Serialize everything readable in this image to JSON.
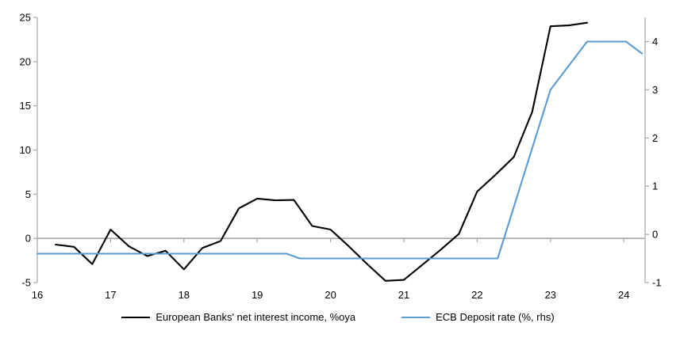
{
  "chart_data": {
    "type": "line",
    "title": "",
    "grid": false,
    "legend_position": "bottom",
    "x_axis": {
      "min": 16,
      "max": 24.29,
      "ticks": [
        16,
        17,
        18,
        19,
        20,
        21,
        22,
        23,
        24
      ]
    },
    "left_axis": {
      "min": -5,
      "max": 25,
      "ticks": [
        -5,
        0,
        5,
        10,
        15,
        20,
        25
      ]
    },
    "right_axis": {
      "min": -1,
      "max": 4.5,
      "ticks": [
        -1,
        0,
        1,
        2,
        3,
        4
      ]
    },
    "zero_line": true,
    "colors": {
      "axis": "#a6a6a6",
      "zero_line": "#a6a6a6",
      "text": "#000000",
      "series_black": "#000000",
      "series_blue": "#5b9bd5"
    },
    "series": [
      {
        "name": "European Banks' net interest income, %oya",
        "axis": "left",
        "color": "#000000",
        "points": [
          [
            16.25,
            -0.7
          ],
          [
            16.5,
            -0.95
          ],
          [
            16.75,
            -2.9
          ],
          [
            17.0,
            1.0
          ],
          [
            17.25,
            -0.9
          ],
          [
            17.5,
            -2.0
          ],
          [
            17.75,
            -1.4
          ],
          [
            18.0,
            -3.5
          ],
          [
            18.25,
            -1.1
          ],
          [
            18.5,
            -0.3
          ],
          [
            18.75,
            3.4
          ],
          [
            19.0,
            4.5
          ],
          [
            19.25,
            4.3
          ],
          [
            19.5,
            4.35
          ],
          [
            19.75,
            1.4
          ],
          [
            20.0,
            1.0
          ],
          [
            20.25,
            -0.9
          ],
          [
            20.5,
            -2.9
          ],
          [
            20.75,
            -4.8
          ],
          [
            21.0,
            -4.7
          ],
          [
            21.25,
            -3.0
          ],
          [
            21.5,
            -1.3
          ],
          [
            21.75,
            0.5
          ],
          [
            22.0,
            5.3
          ],
          [
            22.25,
            7.2
          ],
          [
            22.5,
            9.2
          ],
          [
            22.75,
            14.3
          ],
          [
            23.0,
            24.0
          ],
          [
            23.25,
            24.1
          ],
          [
            23.5,
            24.4
          ]
        ]
      },
      {
        "name": "ECB Deposit rate (%, rhs)",
        "axis": "right",
        "color": "#5b9bd5",
        "points": [
          [
            16.0,
            -0.4
          ],
          [
            19.4,
            -0.4
          ],
          [
            19.58,
            -0.5
          ],
          [
            22.28,
            -0.5
          ],
          [
            23.0,
            3.0
          ],
          [
            23.5,
            4.0
          ],
          [
            24.03,
            4.0
          ],
          [
            24.25,
            3.75
          ]
        ]
      }
    ]
  },
  "legend": {
    "item1": "European Banks' net interest income, %oya",
    "item2": "ECB Deposit rate (%, rhs)"
  }
}
